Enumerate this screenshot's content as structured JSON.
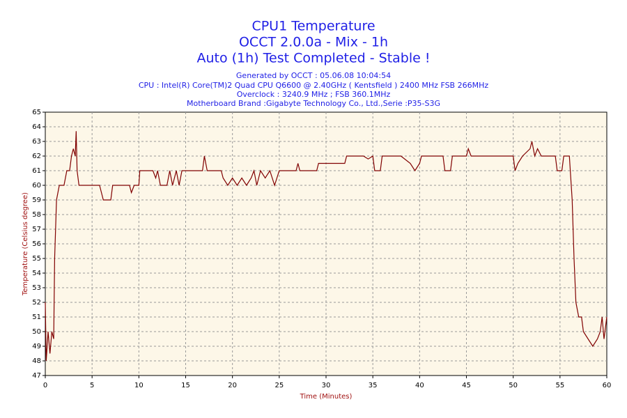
{
  "chart_data": {
    "type": "line",
    "title_lines": [
      "CPU1 Temperature",
      "OCCT 2.0.0a - Mix - 1h",
      "Auto (1h) Test Completed - Stable !"
    ],
    "info_lines": [
      "Generated by OCCT : 05.06.08 10:04:54",
      "CPU : Intel(R) Core(TM)2 Quad CPU Q6600 @ 2.40GHz ( Kentsfield ) 2400 MHz FSB 266MHz",
      "Overclock : 3240.9 MHz ; FSB 360.1MHz",
      "Motherboard Brand :Gigabyte Technology Co., Ltd.,Serie :P35-S3G"
    ],
    "x_label": "Time (Minutes)",
    "y_label": "Temperature (Celsius degree)",
    "xlim": [
      0,
      60
    ],
    "xticks": [
      0,
      5,
      10,
      15,
      20,
      25,
      30,
      35,
      40,
      45,
      50,
      55,
      60
    ],
    "ylim": [
      47,
      65
    ],
    "yticks": [
      47,
      48,
      49,
      50,
      51,
      52,
      53,
      54,
      55,
      56,
      57,
      58,
      59,
      60,
      61,
      62,
      63,
      64,
      65
    ],
    "grid": true,
    "series": [
      {
        "name": "CPU1",
        "color": "#800000",
        "x": [
          0,
          0.1,
          0.3,
          0.5,
          0.7,
          0.9,
          1.0,
          1.2,
          1.5,
          2.0,
          2.3,
          2.6,
          2.8,
          3.0,
          3.2,
          3.3,
          3.4,
          3.6,
          4,
          5,
          5.8,
          6,
          6.2,
          7,
          7.2,
          8,
          9,
          9.2,
          9.5,
          10,
          10.1,
          11,
          11.5,
          11.8,
          12,
          12.3,
          13,
          13.3,
          13.6,
          14,
          14.3,
          14.6,
          15,
          16,
          16.8,
          17,
          17.3,
          18,
          18.8,
          19,
          19.5,
          20,
          20.5,
          21,
          21.5,
          22,
          22.3,
          22.6,
          23,
          23.5,
          24,
          24.5,
          25,
          26,
          26.8,
          27,
          27.2,
          28,
          29,
          29.2,
          30,
          31,
          32,
          32.2,
          33,
          34,
          34.5,
          35,
          35.2,
          35.8,
          36,
          37,
          38,
          39,
          39.5,
          40,
          40.2,
          41,
          42,
          42.5,
          42.7,
          43.3,
          43.5,
          44,
          45,
          45.2,
          45.5,
          46,
          47,
          48,
          49,
          50,
          50.2,
          50.5,
          51,
          51.8,
          52,
          52.3,
          52.6,
          53,
          54,
          54.5,
          54.7,
          55.2,
          55.4,
          56,
          56.3,
          56.5,
          56.7,
          57,
          57.3,
          57.5,
          58,
          58.5,
          59,
          59.3,
          59.5,
          59.7,
          60
        ],
        "values": [
          52,
          48,
          50,
          48.5,
          50,
          49.5,
          55,
          59,
          60,
          60,
          61,
          61,
          62,
          62.5,
          62,
          63.7,
          61,
          60,
          60,
          60,
          60,
          59.5,
          59,
          59,
          60,
          60,
          60,
          59.5,
          60,
          60,
          61,
          61,
          61,
          60.5,
          61,
          60,
          60,
          61,
          60,
          61,
          60,
          61,
          61,
          61,
          61,
          62,
          61,
          61,
          61,
          60.5,
          60,
          60.5,
          60,
          60.5,
          60,
          60.5,
          61,
          60,
          61,
          60.5,
          61,
          60,
          61,
          61,
          61,
          61.5,
          61,
          61,
          61,
          61.5,
          61.5,
          61.5,
          61.5,
          62,
          62,
          62,
          61.8,
          62,
          61,
          61,
          62,
          62,
          62,
          61.5,
          61,
          61.5,
          62,
          62,
          62,
          62,
          61,
          61,
          62,
          62,
          62,
          62.5,
          62,
          62,
          62,
          62,
          62,
          62,
          61,
          61.5,
          62,
          62.5,
          63,
          62,
          62.5,
          62,
          62,
          62,
          61,
          61,
          62,
          62,
          59,
          55,
          52,
          51,
          51,
          50,
          49.5,
          49,
          49.5,
          50,
          51,
          49.5,
          51
        ]
      }
    ]
  }
}
